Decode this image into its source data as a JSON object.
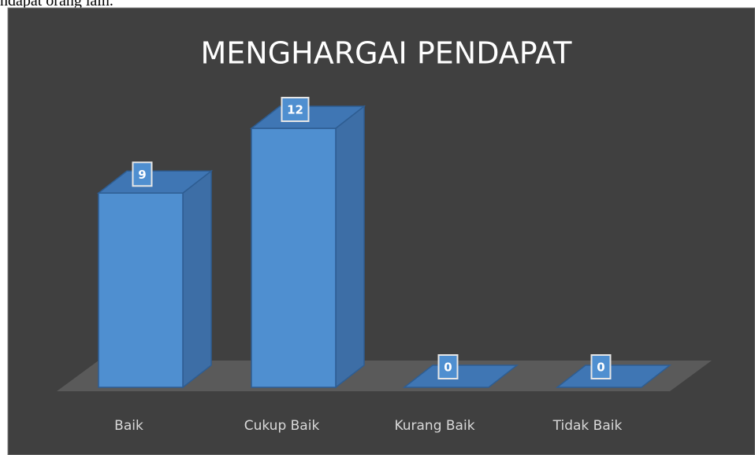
{
  "caption": "ndapat orang lain.",
  "chart_data": {
    "type": "bar3d",
    "title": "MENGHARGAI PENDAPAT",
    "categories": [
      "Baik",
      "Cukup Baik",
      "Kurang Baik",
      "Tidak Baik"
    ],
    "values": [
      9,
      12,
      0,
      0
    ],
    "color": "#4f8fd0"
  }
}
